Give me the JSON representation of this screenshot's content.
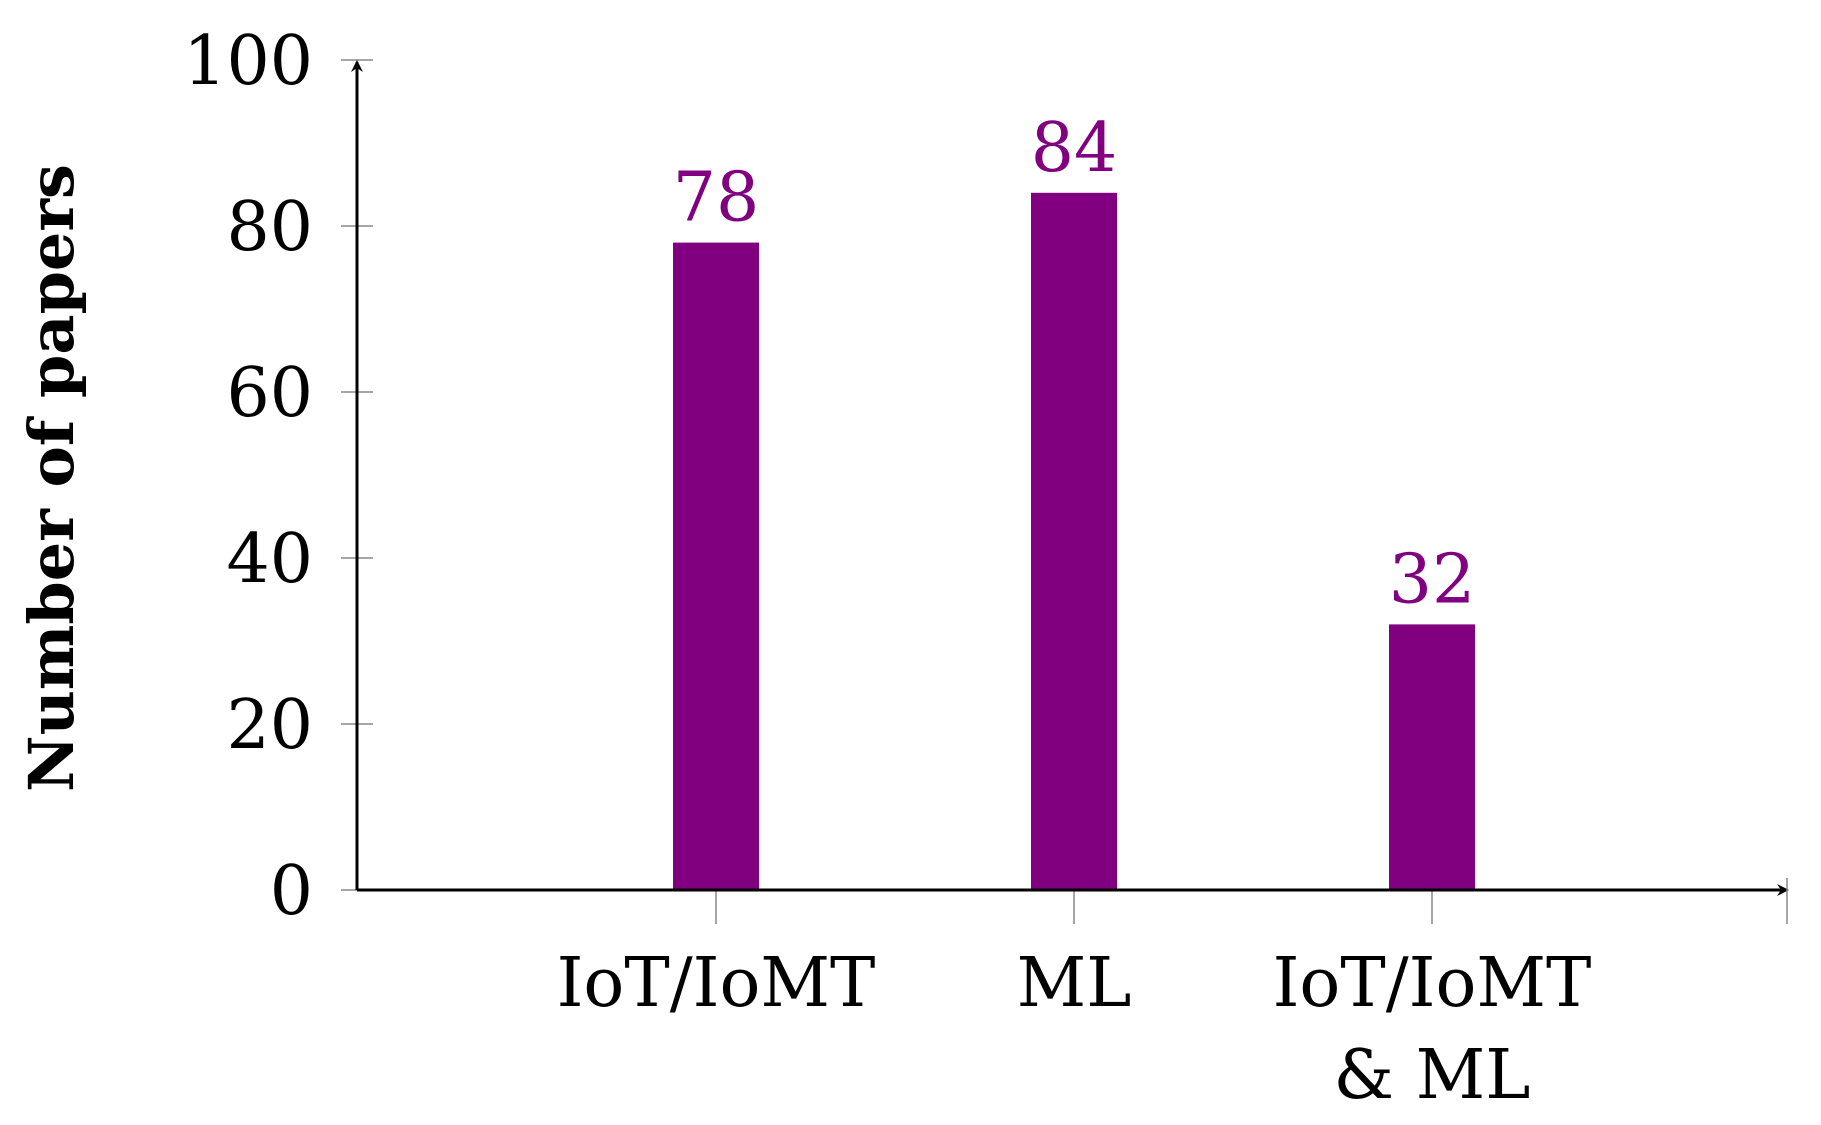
{
  "chart_data": {
    "type": "bar",
    "categories": [
      [
        "IoT/IoMT"
      ],
      [
        "ML"
      ],
      [
        "IoT/IoMT",
        "& ML"
      ]
    ],
    "values": [
      78,
      84,
      32
    ],
    "data_labels": [
      "78",
      "84",
      "32"
    ],
    "xlabel": "",
    "ylabel": "Number of papers",
    "ylim": [
      0,
      100
    ],
    "yticks": [
      "0",
      "20",
      "40",
      "60",
      "80",
      "100"
    ],
    "grid": false,
    "bar_color": "#800080",
    "label_color": "#800080"
  }
}
